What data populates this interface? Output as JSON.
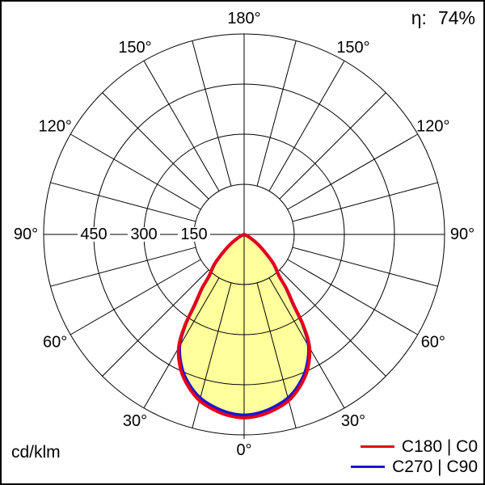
{
  "header": {
    "eta_label": "η:",
    "eta_value": "74%"
  },
  "footer": {
    "unit": "cd/klm"
  },
  "chart_data": {
    "type": "polar",
    "subtype": "luminous-intensity-distribution",
    "unit": "cd/klm",
    "efficiency_percent": 74,
    "radial_axis": {
      "rings": [
        150,
        300,
        450,
        600
      ],
      "ring_labels": [
        "150",
        "300",
        "450"
      ],
      "max": 600
    },
    "angle_axis": {
      "labels": [
        "0°",
        "30°",
        "60°",
        "90°",
        "120°",
        "150°",
        "180°"
      ],
      "label_step_deg": 30,
      "spoke_step_deg": 15
    },
    "fill_color": "#ffff9c",
    "grid_color": "#000000",
    "series": [
      {
        "name": "C180 | C0",
        "color": "#e60019",
        "gamma_deg": [
          0,
          5,
          10,
          15,
          20,
          25,
          30,
          33,
          35,
          38,
          40,
          45,
          50,
          55,
          60,
          65,
          70
        ],
        "cd_per_klm": [
          549,
          544,
          532,
          515,
          486,
          448,
          392,
          327,
          261,
          206,
          165,
          126,
          80,
          48,
          24,
          10,
          0
        ]
      },
      {
        "name": "C270 | C90",
        "color": "#1818d0",
        "gamma_deg": [
          0,
          5,
          10,
          15,
          20,
          25,
          30,
          33,
          35,
          38,
          40,
          45,
          50,
          55,
          60,
          65,
          70
        ],
        "cd_per_klm": [
          541,
          536,
          524,
          507,
          479,
          441,
          386,
          322,
          257,
          203,
          163,
          124,
          79,
          47,
          24,
          10,
          0
        ]
      }
    ]
  }
}
